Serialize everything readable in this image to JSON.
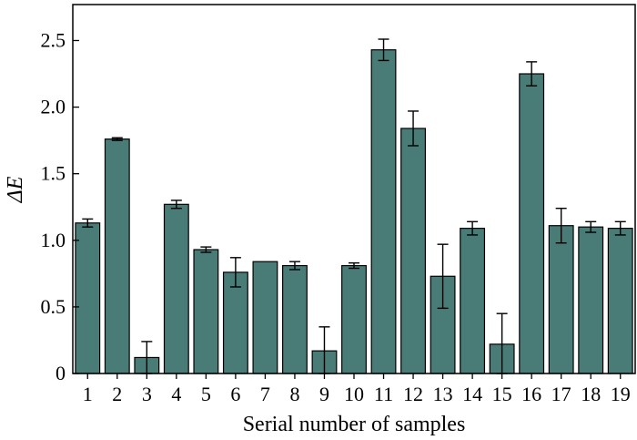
{
  "chart_data": {
    "type": "bar",
    "categories": [
      "1",
      "2",
      "3",
      "4",
      "5",
      "6",
      "7",
      "8",
      "9",
      "10",
      "11",
      "12",
      "13",
      "14",
      "15",
      "16",
      "17",
      "18",
      "19"
    ],
    "values": [
      1.13,
      1.76,
      0.12,
      1.27,
      0.93,
      0.76,
      0.84,
      0.81,
      0.17,
      0.81,
      2.43,
      1.84,
      0.73,
      1.09,
      0.22,
      2.25,
      1.11,
      1.1,
      1.09
    ],
    "error": [
      0.03,
      0.01,
      0.12,
      0.03,
      0.02,
      0.11,
      0.0,
      0.03,
      0.18,
      0.02,
      0.08,
      0.13,
      0.24,
      0.05,
      0.23,
      0.09,
      0.13,
      0.04,
      0.05
    ],
    "xlabel": "Serial number of samples",
    "ylabel": "ΔE",
    "ylim": [
      0,
      2.77
    ],
    "yticks": [
      "0",
      "0.5",
      "1.0",
      "1.5",
      "2.0",
      "2.5"
    ],
    "ytick_values": [
      0,
      0.5,
      1.0,
      1.5,
      2.0,
      2.5
    ],
    "bar_color": "#4a7c77",
    "grid": false,
    "legend": "none"
  }
}
